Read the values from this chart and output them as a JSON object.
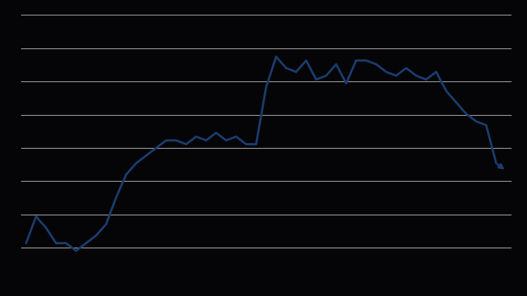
{
  "background_color": "#050508",
  "plot_bg_color": "#050508",
  "line_color": "#1a3d6e",
  "grid_color": "#aaaaaa",
  "figsize": [
    7.5,
    4.22
  ],
  "dpi": 100,
  "y_values": [
    10,
    17,
    14,
    10,
    10,
    8,
    10,
    12,
    15,
    22,
    28,
    31,
    33,
    35,
    37,
    37,
    36,
    38,
    37,
    39,
    37,
    38,
    36,
    36,
    51,
    59,
    56,
    55,
    58,
    53,
    54,
    57,
    52,
    58,
    58,
    57,
    55,
    54,
    56,
    54,
    53,
    55,
    50,
    47,
    44,
    42,
    41,
    31,
    29
  ],
  "ylim": [
    0,
    70
  ],
  "xlim": [
    -0.5,
    48.5
  ],
  "num_gridlines": 8,
  "line_width": 2.2,
  "grid_linewidth": 0.8,
  "arrow_marker_size": 8
}
